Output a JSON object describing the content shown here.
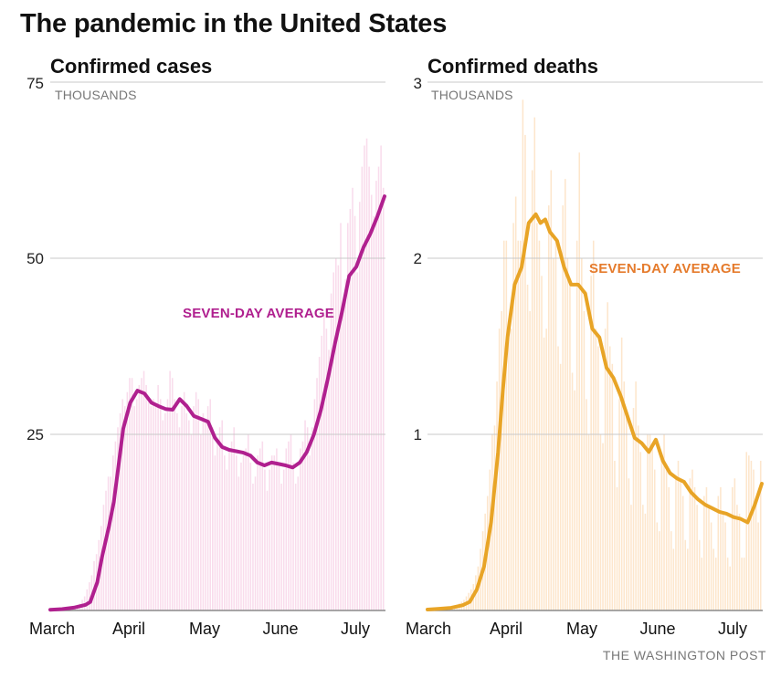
{
  "header": {
    "title": "The pandemic in the United States"
  },
  "credit": "THE WASHINGTON POST",
  "chart_data": [
    {
      "id": "cases",
      "type": "bar",
      "title": "Confirmed cases",
      "units": "THOUSANDS",
      "xlabel": "",
      "ylabel": "Thousands",
      "ylim": [
        0,
        75
      ],
      "yticks": [
        25,
        50,
        75
      ],
      "ytick_labels": [
        "25",
        "50",
        "75"
      ],
      "grid": true,
      "x_range_days": [
        0,
        142
      ],
      "x_tick_labels": [
        "March",
        "April",
        "May",
        "June",
        "July"
      ],
      "x_tick_days": [
        0,
        31,
        61,
        92,
        122
      ],
      "colors": {
        "bars": "#f9dcec",
        "line": "#b0208f",
        "label": "#b0208f"
      },
      "annotation": "SEVEN-DAY AVERAGE",
      "seven_day_average": {
        "days": [
          0,
          5,
          10,
          15,
          17,
          20,
          22,
          25,
          27,
          29,
          31,
          34,
          37,
          40,
          43,
          46,
          49,
          52,
          55,
          58,
          61,
          64,
          67,
          70,
          73,
          76,
          79,
          82,
          85,
          88,
          91,
          94,
          97,
          100,
          103,
          106,
          109,
          112,
          115,
          118,
          121,
          124,
          127,
          130,
          133,
          136,
          139,
          142
        ],
        "values": [
          0.1,
          0.2,
          0.4,
          0.8,
          1.2,
          4,
          7.6,
          12,
          15.4,
          20.5,
          25.8,
          29.5,
          31.2,
          30.8,
          29.5,
          29,
          28.6,
          28.5,
          30,
          29,
          27.6,
          27.2,
          26.8,
          24.5,
          23.2,
          22.8,
          22.6,
          22.4,
          22,
          21,
          20.6,
          21,
          20.8,
          20.6,
          20.3,
          21,
          22.5,
          25,
          28.5,
          33,
          38,
          42.5,
          47.5,
          48.8,
          51.5,
          53.5,
          56,
          58.8
        ]
      },
      "daily": {
        "note": "approximate daily confirmed cases (thousands)",
        "values": [
          0.1,
          0.1,
          0.1,
          0.1,
          0.2,
          0.2,
          0.3,
          0.3,
          0.4,
          0.5,
          0.6,
          0.8,
          1,
          1.5,
          2,
          3,
          4,
          5,
          7,
          8,
          10,
          12,
          15,
          17,
          19,
          19,
          22,
          24,
          26,
          28,
          30,
          29,
          31,
          33,
          33,
          29,
          30,
          32,
          33,
          34,
          32,
          30,
          29,
          30,
          29,
          32,
          30,
          27,
          28,
          30,
          34,
          33,
          30,
          28,
          26,
          29,
          31,
          28,
          27,
          25,
          29,
          31,
          30,
          25,
          28,
          27,
          29,
          30,
          26,
          22,
          24,
          26,
          27,
          22,
          20,
          23,
          24,
          26,
          22,
          19,
          21,
          22,
          23,
          25,
          21,
          18,
          19,
          22,
          23,
          24,
          20,
          17,
          20,
          22,
          22,
          23,
          21,
          18,
          20,
          23,
          24,
          25,
          21,
          18,
          19,
          23,
          24,
          27,
          26,
          22,
          26,
          30,
          33,
          36,
          39,
          42,
          40,
          37,
          45,
          48,
          50,
          49,
          55,
          44,
          47,
          55,
          57,
          60,
          56,
          48,
          58,
          63,
          66,
          67,
          63,
          59,
          56,
          61,
          63,
          66,
          60
        ]
      }
    },
    {
      "id": "deaths",
      "type": "bar",
      "title": "Confirmed deaths",
      "units": "THOUSANDS",
      "xlabel": "",
      "ylabel": "Thousands",
      "ylim": [
        0,
        3
      ],
      "yticks": [
        1,
        2,
        3
      ],
      "ytick_labels": [
        "1",
        "2",
        "3"
      ],
      "grid": true,
      "x_range_days": [
        0,
        142
      ],
      "x_tick_labels": [
        "March",
        "April",
        "May",
        "June",
        "July"
      ],
      "x_tick_days": [
        0,
        31,
        61,
        92,
        122
      ],
      "colors": {
        "bars": "#fde6cc",
        "line": "#e8a426",
        "label": "#e57b2c"
      },
      "annotation": "SEVEN-DAY AVERAGE",
      "seven_day_average": {
        "days": [
          0,
          5,
          10,
          15,
          18,
          21,
          24,
          27,
          30,
          32,
          34,
          37,
          40,
          43,
          46,
          48,
          50,
          52,
          55,
          58,
          61,
          64,
          67,
          70,
          73,
          76,
          79,
          82,
          85,
          88,
          91,
          94,
          97,
          100,
          103,
          106,
          109,
          112,
          115,
          118,
          121,
          124,
          127,
          130,
          133,
          136,
          139,
          142
        ],
        "values": [
          0.005,
          0.01,
          0.015,
          0.03,
          0.05,
          0.12,
          0.25,
          0.5,
          0.9,
          1.25,
          1.55,
          1.85,
          1.95,
          2.2,
          2.25,
          2.2,
          2.22,
          2.15,
          2.1,
          1.95,
          1.85,
          1.85,
          1.8,
          1.6,
          1.55,
          1.38,
          1.32,
          1.22,
          1.1,
          0.98,
          0.95,
          0.9,
          0.97,
          0.85,
          0.78,
          0.75,
          0.73,
          0.67,
          0.63,
          0.6,
          0.58,
          0.56,
          0.55,
          0.53,
          0.52,
          0.5,
          0.6,
          0.72
        ]
      },
      "daily": {
        "note": "approximate daily confirmed deaths (thousands)",
        "values": [
          0,
          0,
          0,
          0,
          0.01,
          0.01,
          0.01,
          0.01,
          0.01,
          0.02,
          0.02,
          0.02,
          0.03,
          0.04,
          0.05,
          0.06,
          0.08,
          0.1,
          0.12,
          0.15,
          0.2,
          0.25,
          0.35,
          0.45,
          0.55,
          0.65,
          0.8,
          1.0,
          1.05,
          1.3,
          1.6,
          1.7,
          2.1,
          2.1,
          1.55,
          1.6,
          2.2,
          2.35,
          2.1,
          2.1,
          2.9,
          2.7,
          1.85,
          1.7,
          2.5,
          2.8,
          2.2,
          2.1,
          1.9,
          1.55,
          1.6,
          2.3,
          2.5,
          2.0,
          2.1,
          1.5,
          1.4,
          2.3,
          2.45,
          2.0,
          1.85,
          1.35,
          1.25,
          2.1,
          2.6,
          2.0,
          1.7,
          1.2,
          1.0,
          1.9,
          2.1,
          1.6,
          1.5,
          1.0,
          0.95,
          1.6,
          1.75,
          1.5,
          1.4,
          0.85,
          0.7,
          1.2,
          1.55,
          1.3,
          1.1,
          0.75,
          0.6,
          1.15,
          1.3,
          1.05,
          0.9,
          0.6,
          0.55,
          1.0,
          1.0,
          0.95,
          0.8,
          0.5,
          0.45,
          0.85,
          1.0,
          0.8,
          0.7,
          0.45,
          0.35,
          0.75,
          0.85,
          0.75,
          0.65,
          0.4,
          0.35,
          0.75,
          0.8,
          0.7,
          0.6,
          0.4,
          0.3,
          0.65,
          0.7,
          0.6,
          0.5,
          0.35,
          0.3,
          0.65,
          0.7,
          0.55,
          0.5,
          0.3,
          0.25,
          0.7,
          0.75,
          0.6,
          0.55,
          0.3,
          0.3,
          0.9,
          0.88,
          0.85,
          0.8,
          0.6,
          0.5,
          0.85
        ]
      }
    }
  ]
}
